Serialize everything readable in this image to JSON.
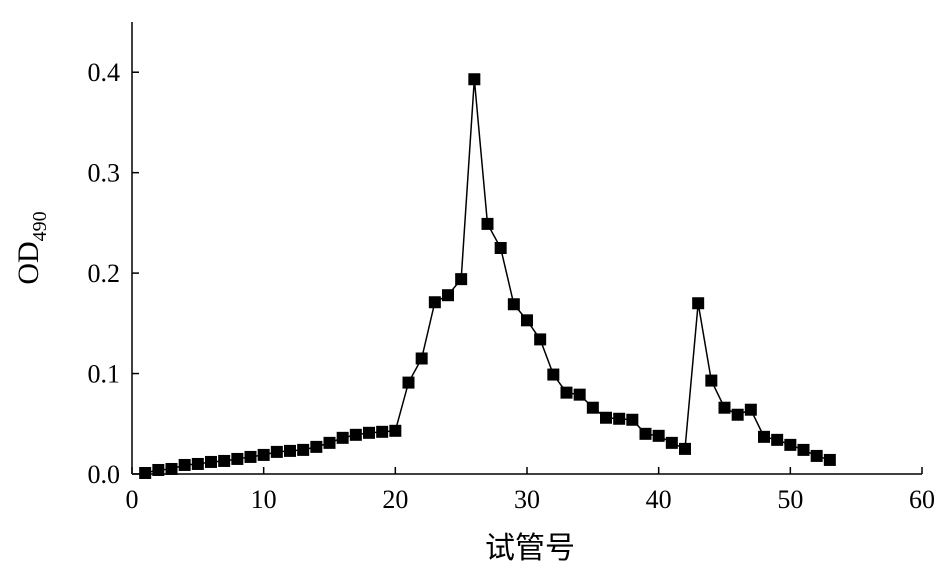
{
  "chart_data": {
    "type": "line",
    "xlabel": "试管号",
    "ylabel": "OD",
    "ylabel_subscript": "490",
    "x": [
      1,
      2,
      3,
      4,
      5,
      6,
      7,
      8,
      9,
      10,
      11,
      12,
      13,
      14,
      15,
      16,
      17,
      18,
      19,
      20,
      21,
      22,
      23,
      24,
      25,
      26,
      27,
      28,
      29,
      30,
      31,
      32,
      33,
      34,
      35,
      36,
      37,
      38,
      39,
      40,
      41,
      42,
      43,
      44,
      45,
      46,
      47,
      48,
      49,
      50,
      51,
      52,
      53
    ],
    "series": [
      {
        "color": "#000000",
        "marker": "square",
        "values": [
          0.001,
          0.004,
          0.005,
          0.009,
          0.01,
          0.012,
          0.013,
          0.015,
          0.017,
          0.019,
          0.022,
          0.023,
          0.024,
          0.027,
          0.031,
          0.036,
          0.039,
          0.041,
          0.042,
          0.043,
          0.091,
          0.115,
          0.171,
          0.178,
          0.194,
          0.393,
          0.249,
          0.225,
          0.169,
          0.153,
          0.134,
          0.099,
          0.081,
          0.079,
          0.066,
          0.056,
          0.055,
          0.054,
          0.04,
          0.038,
          0.031,
          0.025,
          0.17,
          0.093,
          0.066,
          0.059,
          0.064,
          0.037,
          0.034,
          0.029,
          0.024,
          0.018,
          0.014
        ]
      }
    ],
    "xlim": [
      0,
      60
    ],
    "xticks": [
      0,
      10,
      20,
      30,
      40,
      50,
      60
    ],
    "ylim": [
      0,
      0.45
    ],
    "yticks": [
      {
        "value": 0,
        "label": "0.0"
      },
      0.1,
      0.2,
      0.3,
      0.4
    ],
    "grid": false
  }
}
